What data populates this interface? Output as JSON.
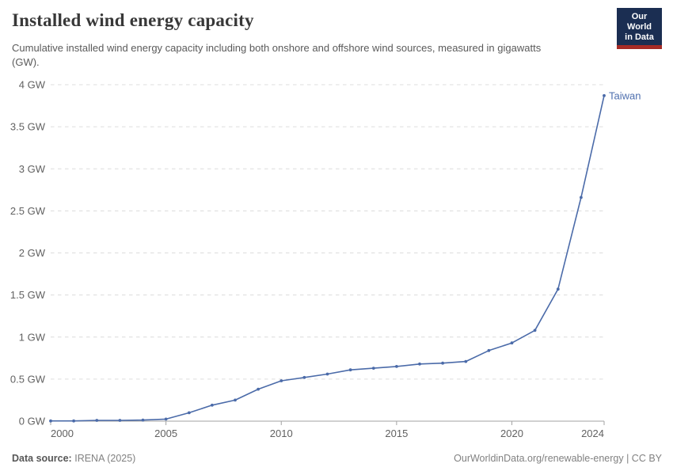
{
  "header": {
    "title": "Installed wind energy capacity",
    "subtitle": "Cumulative installed wind energy capacity including both onshore and offshore wind sources, measured in gigawatts (GW).",
    "logo": {
      "line1": "Our World",
      "line2": "in Data"
    }
  },
  "chart_data": {
    "type": "line",
    "title": "Installed wind energy capacity",
    "unit": "GW",
    "x": [
      2000,
      2001,
      2002,
      2003,
      2004,
      2005,
      2006,
      2007,
      2008,
      2009,
      2010,
      2011,
      2012,
      2013,
      2014,
      2015,
      2016,
      2017,
      2018,
      2019,
      2020,
      2021,
      2022,
      2023,
      2024
    ],
    "series": [
      {
        "name": "Taiwan",
        "values": [
          0.003,
          0.003,
          0.009,
          0.009,
          0.013,
          0.024,
          0.1,
          0.19,
          0.25,
          0.38,
          0.48,
          0.52,
          0.56,
          0.61,
          0.63,
          0.65,
          0.68,
          0.69,
          0.71,
          0.84,
          0.93,
          1.08,
          1.57,
          2.66,
          3.87
        ]
      }
    ],
    "end_label": "Taiwan",
    "xlim": [
      2000,
      2024
    ],
    "ylim": [
      0,
      4
    ],
    "yticks": [
      {
        "value": 0,
        "label": "0 GW"
      },
      {
        "value": 0.5,
        "label": "0.5 GW"
      },
      {
        "value": 1,
        "label": "1 GW"
      },
      {
        "value": 1.5,
        "label": "1.5 GW"
      },
      {
        "value": 2,
        "label": "2 GW"
      },
      {
        "value": 2.5,
        "label": "2.5 GW"
      },
      {
        "value": 3,
        "label": "3 GW"
      },
      {
        "value": 3.5,
        "label": "3.5 GW"
      },
      {
        "value": 4,
        "label": "4 GW"
      }
    ],
    "xticks": [
      {
        "value": 2000,
        "label": "2000"
      },
      {
        "value": 2005,
        "label": "2005"
      },
      {
        "value": 2010,
        "label": "2010"
      },
      {
        "value": 2015,
        "label": "2015"
      },
      {
        "value": 2020,
        "label": "2020"
      },
      {
        "value": 2024,
        "label": "2024"
      }
    ],
    "grid": "horizontal-dashed",
    "legend": "line-end-label"
  },
  "colors": {
    "line": "#4b6ba9",
    "series_label": "#4e6fae",
    "grid": "#dcdcdc",
    "axis": "#a3a3a3",
    "tick_text": "#616161",
    "title_text": "#383838",
    "subtitle_text": "#5a5a5a",
    "footer_text": "#818181",
    "logo_bg": "#1b2e52",
    "logo_stripe": "#a62b26"
  },
  "footer": {
    "source_label": "Data source:",
    "source_value": "IRENA (2025)",
    "credit": "OurWorldinData.org/renewable-energy | CC BY"
  }
}
